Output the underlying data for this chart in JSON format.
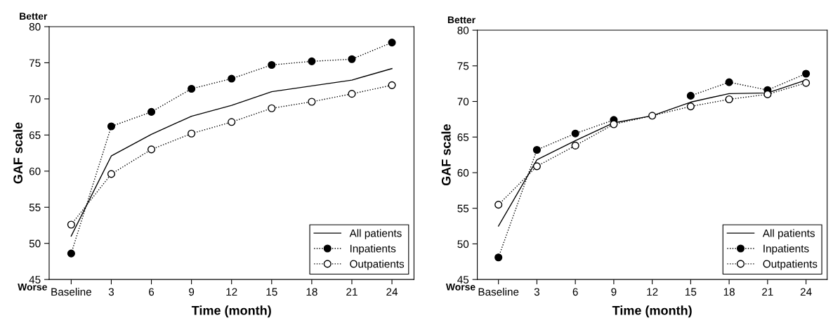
{
  "chart_data": [
    {
      "type": "line",
      "xlabel": "Time (month)",
      "ylabel": "GAF scale",
      "annotations": [
        "Better",
        "Worse"
      ],
      "categories": [
        "Baseline",
        "3",
        "6",
        "9",
        "12",
        "15",
        "18",
        "21",
        "24"
      ],
      "ylim": [
        45,
        80
      ],
      "yticks": [
        45,
        50,
        55,
        60,
        65,
        70,
        75,
        80
      ],
      "grid": false,
      "legend": "bottom right",
      "series": [
        {
          "name": "All patients",
          "color": "#000000",
          "marker": "none",
          "line_style": "solid",
          "values": [
            51.0,
            62.1,
            65.1,
            67.6,
            69.1,
            71.0,
            71.8,
            72.6,
            74.2
          ]
        },
        {
          "name": "Inpatients",
          "color": "#000000",
          "marker": "circle",
          "line_style": "dotted",
          "values": [
            48.6,
            66.2,
            68.2,
            71.4,
            72.8,
            74.7,
            75.2,
            75.5,
            77.8
          ]
        },
        {
          "name": "Outpatients",
          "color": "#ffffff",
          "marker": "circle",
          "line_style": "dotted",
          "values": [
            52.6,
            59.6,
            63.0,
            65.2,
            66.8,
            68.7,
            69.6,
            70.7,
            71.9
          ]
        }
      ]
    },
    {
      "type": "line",
      "xlabel": "Time (month)",
      "ylabel": "GAF scale",
      "annotations": [
        "Better",
        "Worse"
      ],
      "categories": [
        "Baseline",
        "3",
        "6",
        "9",
        "12",
        "15",
        "18",
        "21",
        "24"
      ],
      "ylim": [
        45,
        80
      ],
      "yticks": [
        45,
        50,
        55,
        60,
        65,
        70,
        75,
        80
      ],
      "grid": false,
      "legend": "bottom right",
      "series": [
        {
          "name": "All patients",
          "color": "#000000",
          "marker": "none",
          "line_style": "solid",
          "values": [
            52.5,
            61.8,
            64.5,
            67.0,
            68.0,
            69.9,
            71.1,
            71.2,
            73.0
          ]
        },
        {
          "name": "Inpatients",
          "color": "#000000",
          "marker": "circle",
          "line_style": "dotted",
          "values": [
            48.1,
            63.2,
            65.5,
            67.4,
            null,
            70.8,
            72.7,
            71.6,
            73.9
          ]
        },
        {
          "name": "Outpatients",
          "color": "#ffffff",
          "marker": "circle",
          "line_style": "dotted",
          "values": [
            55.5,
            60.9,
            63.8,
            66.8,
            68.0,
            69.3,
            70.3,
            71.0,
            72.6
          ]
        }
      ]
    }
  ]
}
